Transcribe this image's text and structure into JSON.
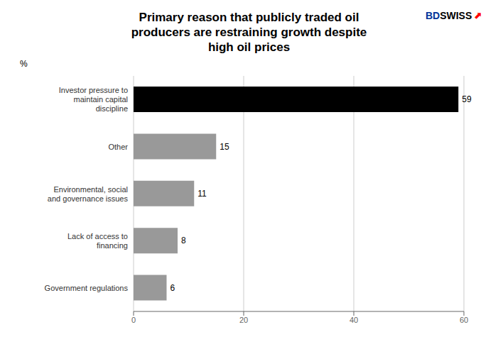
{
  "chart_data": {
    "type": "bar",
    "orientation": "horizontal",
    "title": "Primary reason that publicly traded oil\nproducers are restraining growth despite\nhigh oil prices",
    "ylabel": "%",
    "categories": [
      "Government regulations",
      "Lack of access to\nfinancing",
      "Environmental, social\nand governance issues",
      "Other",
      "Investor pressure to\nmaintain capital\ndiscipline"
    ],
    "values": [
      6,
      8,
      11,
      15,
      59
    ],
    "colors": [
      "#999999",
      "#999999",
      "#999999",
      "#999999",
      "#000000"
    ],
    "xlim": [
      0,
      60
    ],
    "xticks": [
      0,
      20,
      40,
      60
    ],
    "grid": true,
    "data_labels": true,
    "annotations": [
      {
        "text": "BD",
        "color": "#003399"
      },
      {
        "text": "SWISS",
        "color": "#000000"
      },
      {
        "text": "⬆",
        "color": "#ff0000"
      }
    ]
  }
}
